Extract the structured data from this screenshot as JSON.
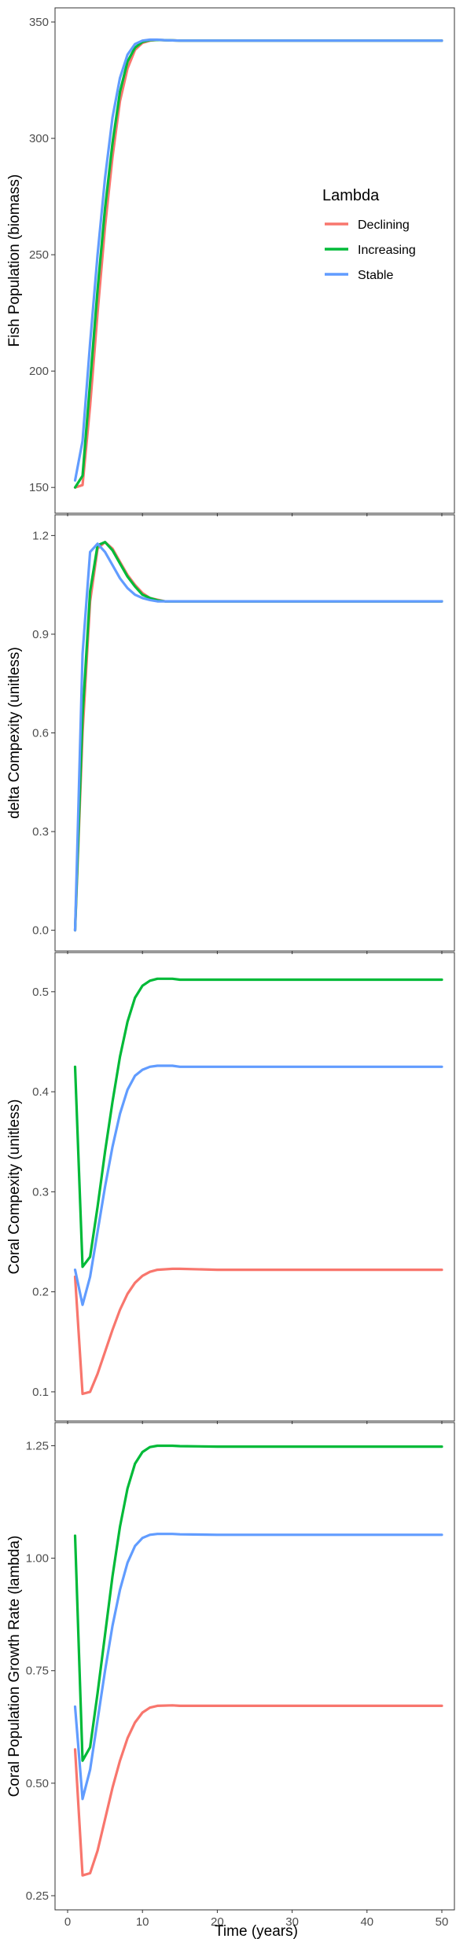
{
  "chart_data": {
    "type": "line",
    "xlabel": "Time (years)",
    "xlim": [
      0,
      50
    ],
    "x_ticks": [
      "0",
      "10",
      "20",
      "30",
      "40",
      "50"
    ],
    "legend": {
      "title": "Lambda",
      "position": "right-inside-top-panel",
      "entries": [
        {
          "label": "Declining",
          "color": "#F8766D"
        },
        {
          "label": "Increasing",
          "color": "#00BA38"
        },
        {
          "label": "Stable",
          "color": "#619CFF"
        }
      ]
    },
    "panels": [
      {
        "ylabel": "Fish Population (biomass)",
        "ylim": [
          145,
          350
        ],
        "y_ticks": [
          "150",
          "200",
          "250",
          "300",
          "350"
        ],
        "y_tick_values": [
          150,
          200,
          250,
          300,
          350
        ],
        "series": [
          {
            "name": "Declining",
            "color": "#F8766D",
            "points": [
              [
                1,
                150
              ],
              [
                2,
                151
              ],
              [
                3,
                185
              ],
              [
                4,
                225
              ],
              [
                5,
                262
              ],
              [
                6,
                292
              ],
              [
                7,
                316
              ],
              [
                8,
                330
              ],
              [
                9,
                338
              ],
              [
                10,
                341
              ],
              [
                11,
                342
              ],
              [
                12,
                342.3
              ],
              [
                13,
                342.2
              ],
              [
                14,
                342.1
              ],
              [
                15,
                342
              ],
              [
                20,
                342
              ],
              [
                30,
                342
              ],
              [
                40,
                342
              ],
              [
                50,
                342
              ]
            ]
          },
          {
            "name": "Increasing",
            "color": "#00BA38",
            "points": [
              [
                1,
                150
              ],
              [
                2,
                155
              ],
              [
                3,
                195
              ],
              [
                4,
                235
              ],
              [
                5,
                270
              ],
              [
                6,
                298
              ],
              [
                7,
                320
              ],
              [
                8,
                333
              ],
              [
                9,
                339
              ],
              [
                10,
                341.5
              ],
              [
                11,
                342.2
              ],
              [
                12,
                342.3
              ],
              [
                13,
                342.2
              ],
              [
                14,
                342.1
              ],
              [
                15,
                342
              ],
              [
                20,
                342
              ],
              [
                30,
                342
              ],
              [
                40,
                342
              ],
              [
                50,
                342
              ]
            ]
          },
          {
            "name": "Stable",
            "color": "#619CFF",
            "points": [
              [
                1,
                153
              ],
              [
                2,
                170
              ],
              [
                3,
                212
              ],
              [
                4,
                250
              ],
              [
                5,
                283
              ],
              [
                6,
                309
              ],
              [
                7,
                326
              ],
              [
                8,
                336
              ],
              [
                9,
                340.5
              ],
              [
                10,
                342
              ],
              [
                11,
                342.4
              ],
              [
                12,
                342.4
              ],
              [
                13,
                342.2
              ],
              [
                14,
                342.1
              ],
              [
                15,
                342
              ],
              [
                20,
                342
              ],
              [
                30,
                342
              ],
              [
                40,
                342
              ],
              [
                50,
                342
              ]
            ]
          }
        ]
      },
      {
        "ylabel": "delta Compexity (unitless)",
        "ylim": [
          -0.02,
          1.22
        ],
        "y_ticks": [
          "0.0",
          "0.3",
          "0.6",
          "0.9",
          "1.2"
        ],
        "y_tick_values": [
          0.0,
          0.3,
          0.6,
          0.9,
          1.2
        ],
        "series": [
          {
            "name": "Declining",
            "color": "#F8766D",
            "points": [
              [
                1,
                0.0
              ],
              [
                2,
                0.6
              ],
              [
                3,
                1.0
              ],
              [
                4,
                1.16
              ],
              [
                5,
                1.18
              ],
              [
                6,
                1.16
              ],
              [
                7,
                1.12
              ],
              [
                8,
                1.08
              ],
              [
                9,
                1.05
              ],
              [
                10,
                1.025
              ],
              [
                11,
                1.01
              ],
              [
                12,
                1.005
              ],
              [
                13,
                1.0
              ],
              [
                14,
                1.0
              ],
              [
                15,
                1.0
              ],
              [
                20,
                1.0
              ],
              [
                30,
                1.0
              ],
              [
                40,
                1.0
              ],
              [
                50,
                1.0
              ]
            ]
          },
          {
            "name": "Increasing",
            "color": "#00BA38",
            "points": [
              [
                1,
                0.0
              ],
              [
                2,
                0.65
              ],
              [
                3,
                1.03
              ],
              [
                4,
                1.17
              ],
              [
                5,
                1.18
              ],
              [
                6,
                1.155
              ],
              [
                7,
                1.115
              ],
              [
                8,
                1.075
              ],
              [
                9,
                1.045
              ],
              [
                10,
                1.02
              ],
              [
                11,
                1.01
              ],
              [
                12,
                1.003
              ],
              [
                13,
                1.0
              ],
              [
                14,
                1.0
              ],
              [
                15,
                1.0
              ],
              [
                20,
                1.0
              ],
              [
                30,
                1.0
              ],
              [
                40,
                1.0
              ],
              [
                50,
                1.0
              ]
            ]
          },
          {
            "name": "Stable",
            "color": "#619CFF",
            "points": [
              [
                1,
                0.0
              ],
              [
                2,
                0.84
              ],
              [
                3,
                1.15
              ],
              [
                4,
                1.175
              ],
              [
                5,
                1.15
              ],
              [
                6,
                1.11
              ],
              [
                7,
                1.07
              ],
              [
                8,
                1.04
              ],
              [
                9,
                1.02
              ],
              [
                10,
                1.01
              ],
              [
                11,
                1.004
              ],
              [
                12,
                1.0
              ],
              [
                13,
                1.0
              ],
              [
                15,
                1.0
              ],
              [
                20,
                1.0
              ],
              [
                30,
                1.0
              ],
              [
                40,
                1.0
              ],
              [
                50,
                1.0
              ]
            ]
          }
        ]
      },
      {
        "ylabel": "Coral Compexity (unitless)",
        "ylim": [
          0.085,
          0.525
        ],
        "y_ticks": [
          "0.1",
          "0.2",
          "0.3",
          "0.4",
          "0.5"
        ],
        "y_tick_values": [
          0.1,
          0.2,
          0.3,
          0.4,
          0.5
        ],
        "series": [
          {
            "name": "Declining",
            "color": "#F8766D",
            "points": [
              [
                1,
                0.215
              ],
              [
                2,
                0.098
              ],
              [
                3,
                0.1
              ],
              [
                4,
                0.118
              ],
              [
                5,
                0.14
              ],
              [
                6,
                0.162
              ],
              [
                7,
                0.182
              ],
              [
                8,
                0.198
              ],
              [
                9,
                0.209
              ],
              [
                10,
                0.216
              ],
              [
                11,
                0.22
              ],
              [
                12,
                0.222
              ],
              [
                14,
                0.223
              ],
              [
                15,
                0.223
              ],
              [
                20,
                0.222
              ],
              [
                30,
                0.222
              ],
              [
                40,
                0.222
              ],
              [
                50,
                0.222
              ]
            ]
          },
          {
            "name": "Increasing",
            "color": "#00BA38",
            "points": [
              [
                1,
                0.425
              ],
              [
                2,
                0.225
              ],
              [
                3,
                0.235
              ],
              [
                4,
                0.285
              ],
              [
                5,
                0.34
              ],
              [
                6,
                0.39
              ],
              [
                7,
                0.435
              ],
              [
                8,
                0.47
              ],
              [
                9,
                0.494
              ],
              [
                10,
                0.506
              ],
              [
                11,
                0.511
              ],
              [
                12,
                0.513
              ],
              [
                14,
                0.513
              ],
              [
                15,
                0.512
              ],
              [
                20,
                0.512
              ],
              [
                30,
                0.512
              ],
              [
                40,
                0.512
              ],
              [
                50,
                0.512
              ]
            ]
          },
          {
            "name": "Stable",
            "color": "#619CFF",
            "points": [
              [
                1,
                0.222
              ],
              [
                2,
                0.187
              ],
              [
                3,
                0.215
              ],
              [
                4,
                0.26
              ],
              [
                5,
                0.305
              ],
              [
                6,
                0.345
              ],
              [
                7,
                0.378
              ],
              [
                8,
                0.402
              ],
              [
                9,
                0.416
              ],
              [
                10,
                0.422
              ],
              [
                11,
                0.425
              ],
              [
                12,
                0.426
              ],
              [
                14,
                0.426
              ],
              [
                15,
                0.425
              ],
              [
                20,
                0.425
              ],
              [
                30,
                0.425
              ],
              [
                40,
                0.425
              ],
              [
                50,
                0.425
              ]
            ]
          }
        ]
      },
      {
        "ylabel": "Coral Population Growth Rate (lambda)",
        "ylim": [
          0.25,
          1.27
        ],
        "y_ticks": [
          "0.25",
          "0.50",
          "0.75",
          "1.00",
          "1.25"
        ],
        "y_tick_values": [
          0.25,
          0.5,
          0.75,
          1.0,
          1.25
        ],
        "series": [
          {
            "name": "Declining",
            "color": "#F8766D",
            "points": [
              [
                1,
                0.575
              ],
              [
                2,
                0.295
              ],
              [
                3,
                0.3
              ],
              [
                4,
                0.35
              ],
              [
                5,
                0.42
              ],
              [
                6,
                0.49
              ],
              [
                7,
                0.55
              ],
              [
                8,
                0.6
              ],
              [
                9,
                0.635
              ],
              [
                10,
                0.657
              ],
              [
                11,
                0.668
              ],
              [
                12,
                0.672
              ],
              [
                14,
                0.673
              ],
              [
                15,
                0.672
              ],
              [
                20,
                0.672
              ],
              [
                30,
                0.672
              ],
              [
                40,
                0.672
              ],
              [
                50,
                0.672
              ]
            ]
          },
          {
            "name": "Increasing",
            "color": "#00BA38",
            "points": [
              [
                1,
                1.05
              ],
              [
                2,
                0.55
              ],
              [
                3,
                0.58
              ],
              [
                4,
                0.7
              ],
              [
                5,
                0.83
              ],
              [
                6,
                0.96
              ],
              [
                7,
                1.07
              ],
              [
                8,
                1.155
              ],
              [
                9,
                1.21
              ],
              [
                10,
                1.236
              ],
              [
                11,
                1.247
              ],
              [
                12,
                1.25
              ],
              [
                14,
                1.25
              ],
              [
                15,
                1.249
              ],
              [
                20,
                1.248
              ],
              [
                30,
                1.248
              ],
              [
                40,
                1.248
              ],
              [
                50,
                1.248
              ]
            ]
          },
          {
            "name": "Stable",
            "color": "#619CFF",
            "points": [
              [
                1,
                0.67
              ],
              [
                2,
                0.465
              ],
              [
                3,
                0.53
              ],
              [
                4,
                0.64
              ],
              [
                5,
                0.75
              ],
              [
                6,
                0.85
              ],
              [
                7,
                0.93
              ],
              [
                8,
                0.99
              ],
              [
                9,
                1.027
              ],
              [
                10,
                1.045
              ],
              [
                11,
                1.052
              ],
              [
                12,
                1.054
              ],
              [
                14,
                1.054
              ],
              [
                15,
                1.053
              ],
              [
                20,
                1.052
              ],
              [
                30,
                1.052
              ],
              [
                40,
                1.052
              ],
              [
                50,
                1.052
              ]
            ]
          }
        ]
      }
    ]
  }
}
